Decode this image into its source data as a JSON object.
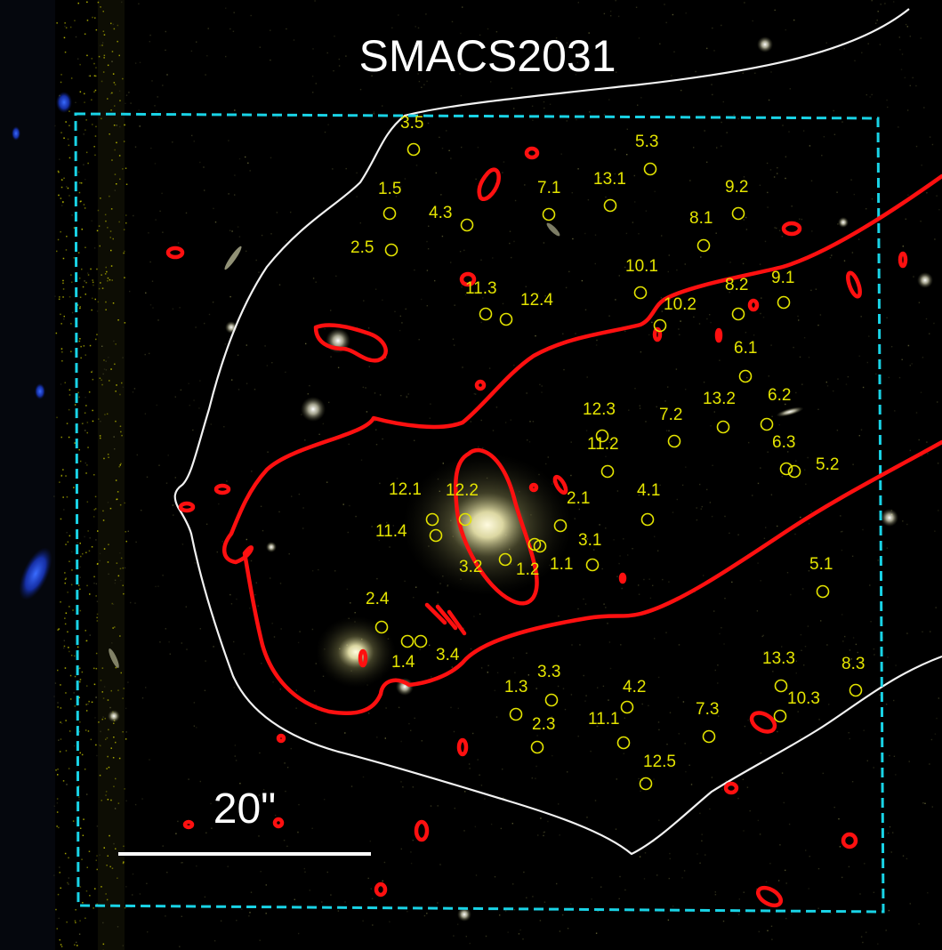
{
  "title": "SMACS2031",
  "scale_bar": {
    "label": "20\""
  },
  "colors": {
    "background": "#000000",
    "critical_curve": "#ff1010",
    "caustic": "#f2f2f2",
    "field_of_view": "#19d3e6",
    "image_markers": "#e4e400",
    "text": "#ffffff"
  },
  "multiple_images": [
    "1.1",
    "1.2",
    "1.3",
    "1.4",
    "1.5",
    "2.1",
    "2.3",
    "2.4",
    "2.5",
    "3.1",
    "3.2",
    "3.3",
    "3.4",
    "3.5",
    "4.1",
    "4.2",
    "4.3",
    "5.1",
    "5.2",
    "5.3",
    "6.1",
    "6.2",
    "6.3",
    "7.1",
    "7.2",
    "7.3",
    "8.1",
    "8.2",
    "8.3",
    "9.1",
    "9.2",
    "10.1",
    "10.2",
    "10.3",
    "11.1",
    "11.2",
    "11.3",
    "11.4",
    "12.1",
    "12.2",
    "12.3",
    "12.4",
    "12.5",
    "13.1",
    "13.2",
    "13.3"
  ]
}
